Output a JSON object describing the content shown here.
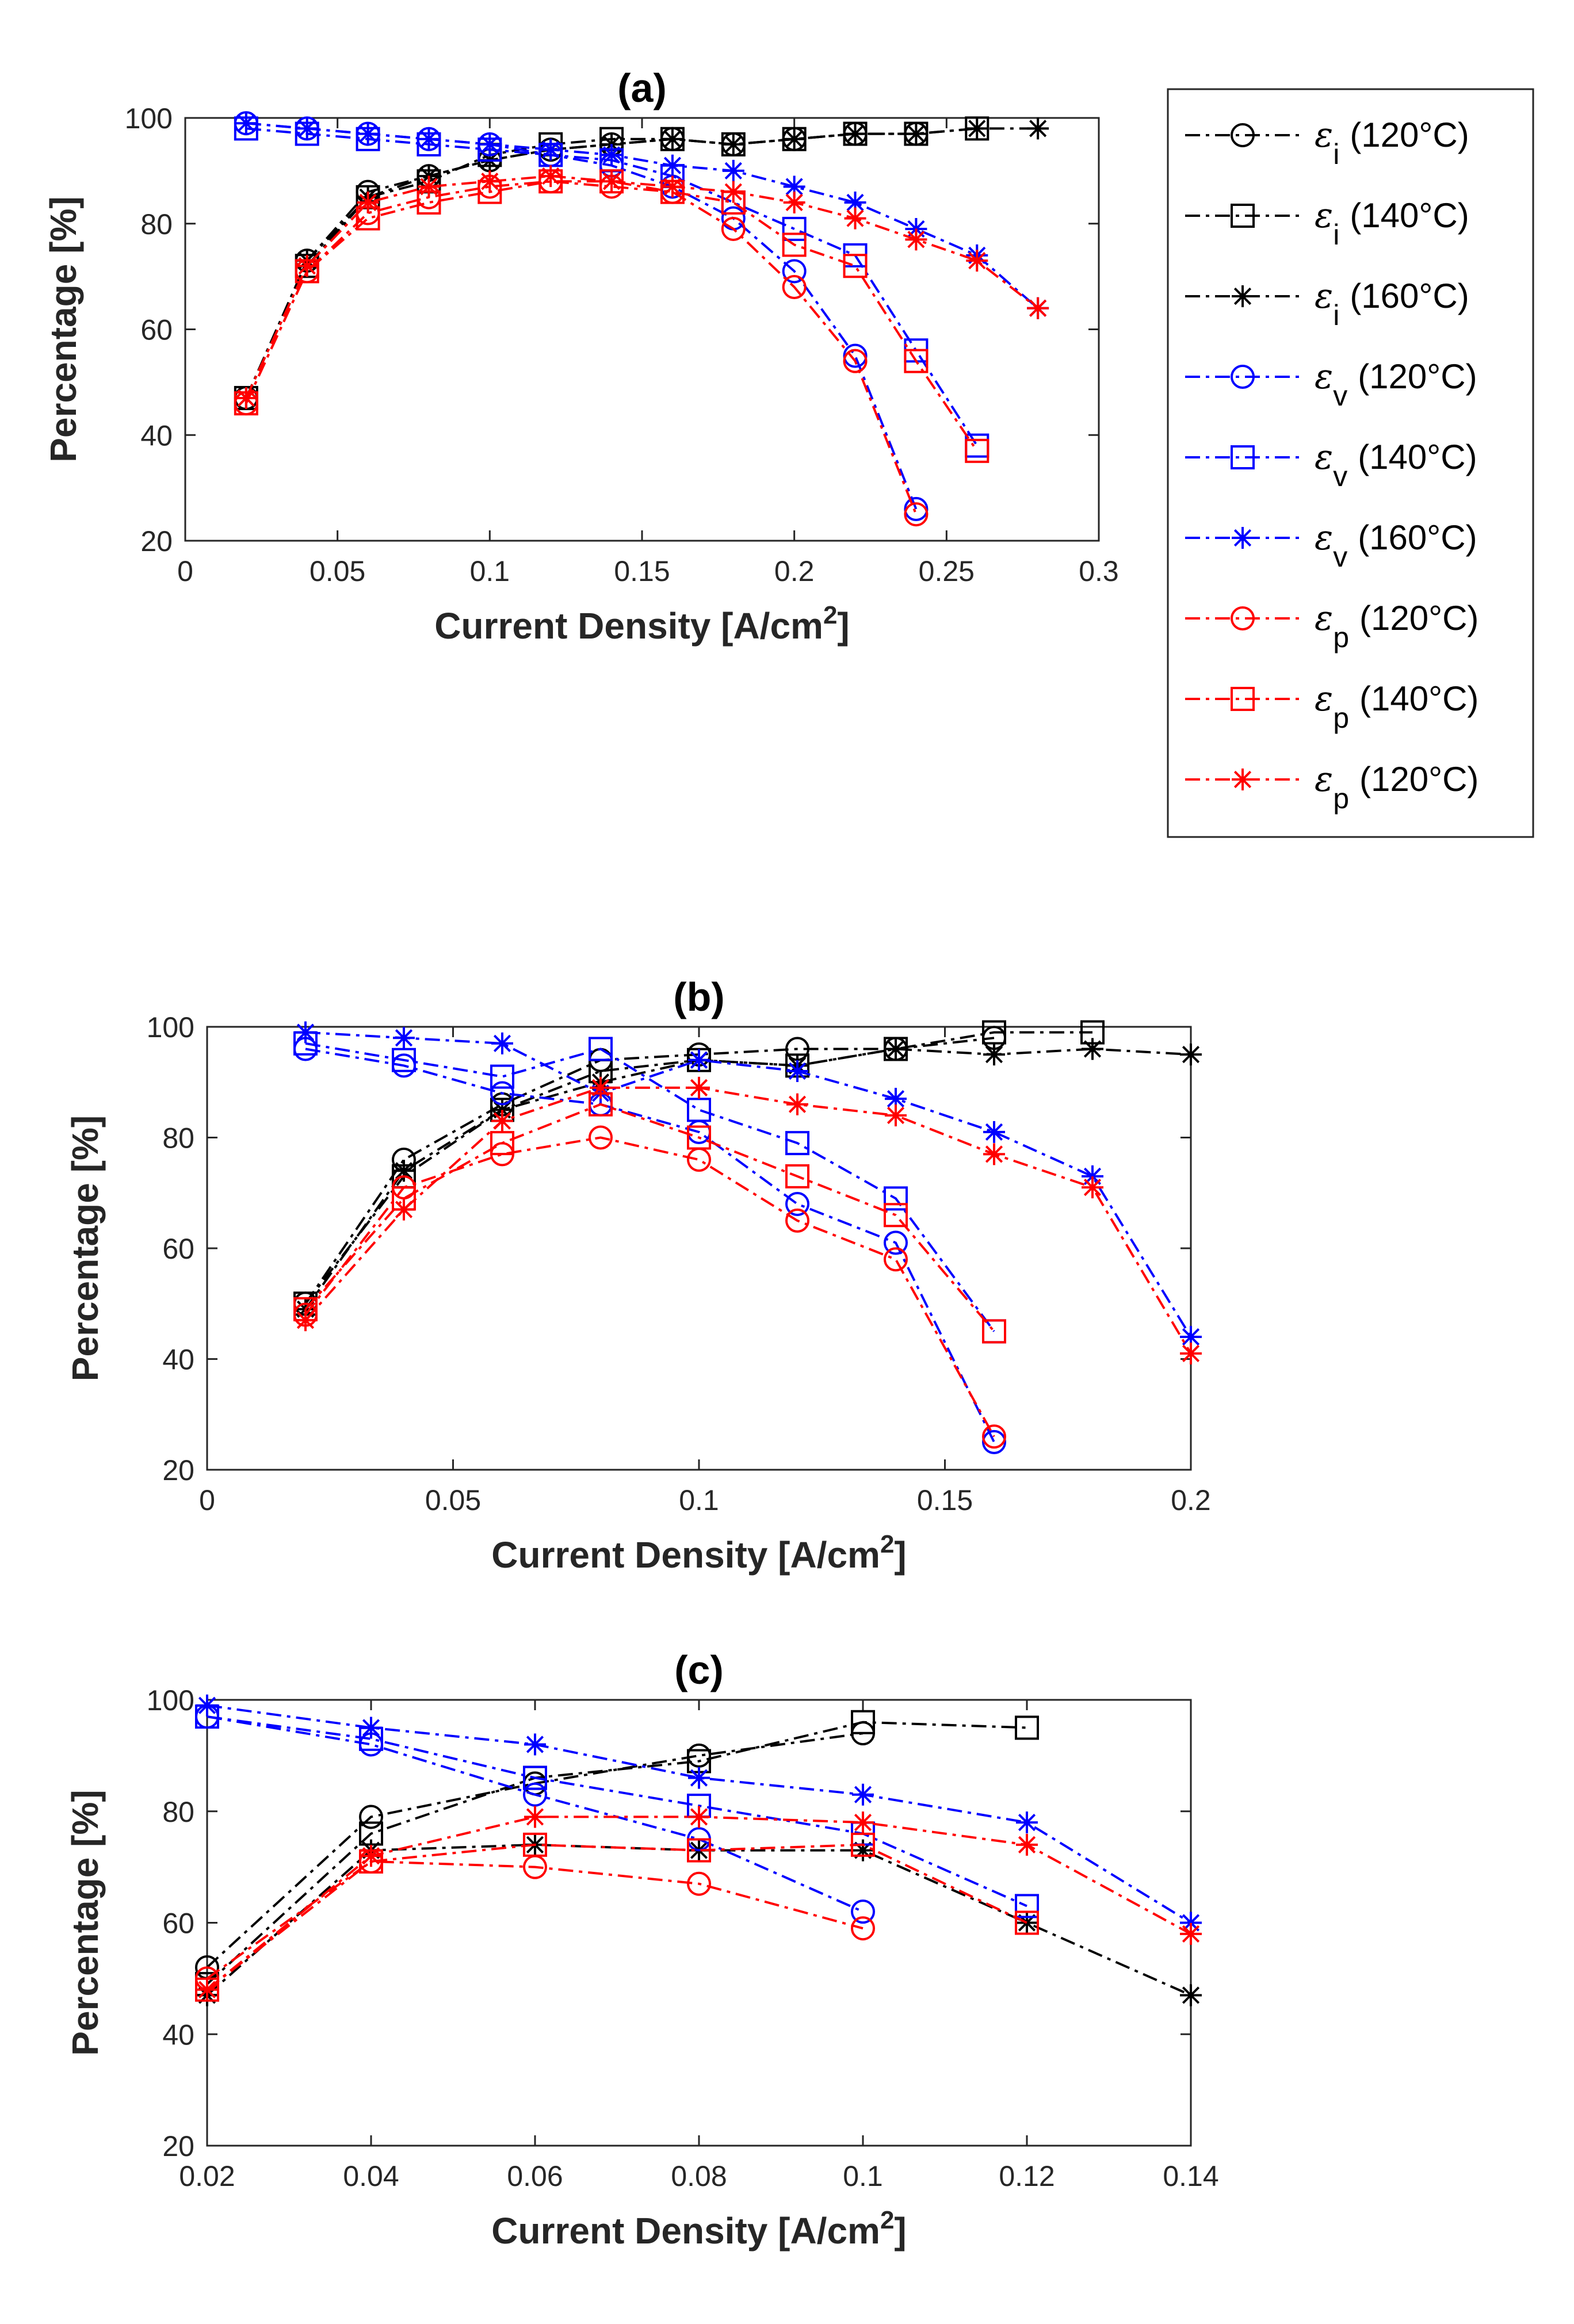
{
  "legend": {
    "entries": [
      {
        "symbol": "ε",
        "sub": "i",
        "temp": "(120°C)",
        "color": "#000000",
        "marker": "circle"
      },
      {
        "symbol": "ε",
        "sub": "i",
        "temp": "(140°C)",
        "color": "#000000",
        "marker": "square"
      },
      {
        "symbol": "ε",
        "sub": "i",
        "temp": "(160°C)",
        "color": "#000000",
        "marker": "star"
      },
      {
        "symbol": "ε",
        "sub": "v",
        "temp": "(120°C)",
        "color": "#0000FF",
        "marker": "circle"
      },
      {
        "symbol": "ε",
        "sub": "v",
        "temp": "(140°C)",
        "color": "#0000FF",
        "marker": "square"
      },
      {
        "symbol": "ε",
        "sub": "v",
        "temp": "(160°C)",
        "color": "#0000FF",
        "marker": "star"
      },
      {
        "symbol": "ε",
        "sub": "p",
        "temp": "(120°C)",
        "color": "#FF0000",
        "marker": "circle"
      },
      {
        "symbol": "ε",
        "sub": "p",
        "temp": "(140°C)",
        "color": "#FF0000",
        "marker": "square"
      },
      {
        "symbol": "ε",
        "sub": "p",
        "temp": "(120°C)",
        "color": "#FF0000",
        "marker": "star"
      }
    ]
  },
  "chart_data": [
    {
      "id": "a",
      "type": "line",
      "title": "(a)",
      "xlabel": "Current Density [A/cm",
      "xlabel_sup": "2",
      "xlabel_end": "]",
      "ylabel": "Percentage [%]",
      "xlim": [
        0,
        0.3
      ],
      "ylim": [
        20,
        100
      ],
      "xticks": [
        0,
        0.05,
        0.1,
        0.15,
        0.2,
        0.25,
        0.3
      ],
      "xtick_labels": [
        "0",
        "0.05",
        "0.1",
        "0.15",
        "0.2",
        "0.25",
        "0.3"
      ],
      "yticks": [
        20,
        40,
        60,
        80,
        100
      ],
      "ytick_labels": [
        "20",
        "40",
        "60",
        "80",
        "100"
      ],
      "series": [
        {
          "name": "εi (120°C)",
          "color": "#000000",
          "marker": "circle",
          "x": [
            0.02,
            0.04,
            0.06,
            0.08,
            0.1,
            0.12,
            0.14,
            0.16,
            0.18,
            0.2,
            0.22,
            0.24
          ],
          "y": [
            47,
            73,
            86,
            89,
            92,
            94,
            95,
            96,
            95,
            96,
            97,
            97
          ]
        },
        {
          "name": "εi (140°C)",
          "color": "#000000",
          "marker": "square",
          "x": [
            0.02,
            0.04,
            0.06,
            0.08,
            0.1,
            0.12,
            0.14,
            0.16,
            0.18,
            0.2,
            0.22,
            0.24,
            0.26
          ],
          "y": [
            47,
            72,
            85,
            88,
            93,
            95,
            96,
            96,
            95,
            96,
            97,
            97,
            98
          ]
        },
        {
          "name": "εi (160°C)",
          "color": "#000000",
          "marker": "star",
          "x": [
            0.02,
            0.04,
            0.06,
            0.08,
            0.1,
            0.12,
            0.14,
            0.16,
            0.18,
            0.2,
            0.22,
            0.24,
            0.26,
            0.28
          ],
          "y": [
            47,
            73,
            85,
            89,
            92,
            94,
            95,
            96,
            95,
            96,
            97,
            97,
            98,
            98
          ]
        },
        {
          "name": "εv (120°C)",
          "color": "#0000FF",
          "marker": "circle",
          "x": [
            0.02,
            0.04,
            0.06,
            0.08,
            0.1,
            0.12,
            0.14,
            0.16,
            0.18,
            0.2,
            0.22,
            0.24
          ],
          "y": [
            99,
            98,
            97,
            96,
            95,
            93,
            91,
            87,
            81,
            71,
            55,
            26
          ]
        },
        {
          "name": "εv (140°C)",
          "color": "#0000FF",
          "marker": "square",
          "x": [
            0.02,
            0.04,
            0.06,
            0.08,
            0.1,
            0.12,
            0.14,
            0.16,
            0.18,
            0.2,
            0.22,
            0.24,
            0.26
          ],
          "y": [
            98,
            97,
            96,
            95,
            94,
            93,
            92,
            89,
            84,
            79,
            74,
            56,
            38
          ]
        },
        {
          "name": "εv (160°C)",
          "color": "#0000FF",
          "marker": "star",
          "x": [
            0.02,
            0.04,
            0.06,
            0.08,
            0.1,
            0.12,
            0.14,
            0.16,
            0.18,
            0.2,
            0.22,
            0.24,
            0.26,
            0.28
          ],
          "y": [
            99,
            98,
            97,
            96,
            95,
            94,
            93,
            91,
            90,
            87,
            84,
            79,
            74,
            64
          ]
        },
        {
          "name": "εp (120°C)",
          "color": "#FF0000",
          "marker": "circle",
          "x": [
            0.02,
            0.04,
            0.06,
            0.08,
            0.1,
            0.12,
            0.14,
            0.16,
            0.18,
            0.2,
            0.22,
            0.24
          ],
          "y": [
            46,
            71,
            82,
            85,
            87,
            88,
            87,
            86,
            79,
            68,
            54,
            25
          ]
        },
        {
          "name": "εp (140°C)",
          "color": "#FF0000",
          "marker": "square",
          "x": [
            0.02,
            0.04,
            0.06,
            0.08,
            0.1,
            0.12,
            0.14,
            0.16,
            0.18,
            0.2,
            0.22,
            0.24,
            0.26
          ],
          "y": [
            46,
            71,
            81,
            84,
            86,
            88,
            88,
            86,
            84,
            76,
            72,
            54,
            37
          ]
        },
        {
          "name": "εp (120°C)",
          "color": "#FF0000",
          "marker": "star",
          "x": [
            0.02,
            0.04,
            0.06,
            0.08,
            0.1,
            0.12,
            0.14,
            0.16,
            0.18,
            0.2,
            0.22,
            0.24,
            0.26,
            0.28
          ],
          "y": [
            47,
            72,
            84,
            87,
            88,
            89,
            88,
            87,
            86,
            84,
            81,
            77,
            73,
            64
          ]
        }
      ]
    },
    {
      "id": "b",
      "type": "line",
      "title": "(b)",
      "xlabel": "Current Density [A/cm",
      "xlabel_sup": "2",
      "xlabel_end": "]",
      "ylabel": "Percentage [%]",
      "xlim": [
        0,
        0.2
      ],
      "ylim": [
        20,
        100
      ],
      "xticks": [
        0,
        0.05,
        0.1,
        0.15,
        0.2
      ],
      "xtick_labels": [
        "0",
        "0.05",
        "0.1",
        "0.15",
        "0.2"
      ],
      "yticks": [
        20,
        40,
        60,
        80,
        100
      ],
      "ytick_labels": [
        "20",
        "40",
        "60",
        "80",
        "100"
      ],
      "series": [
        {
          "name": "εi (120°C)",
          "color": "#000000",
          "marker": "circle",
          "x": [
            0.02,
            0.04,
            0.06,
            0.08,
            0.1,
            0.12,
            0.14,
            0.16
          ],
          "y": [
            50,
            76,
            86,
            94,
            95,
            96,
            96,
            98
          ]
        },
        {
          "name": "εi (140°C)",
          "color": "#000000",
          "marker": "square",
          "x": [
            0.02,
            0.04,
            0.06,
            0.08,
            0.1,
            0.12,
            0.14,
            0.16,
            0.18
          ],
          "y": [
            50,
            73,
            85,
            92,
            94,
            93,
            96,
            99,
            99
          ]
        },
        {
          "name": "εi (160°C)",
          "color": "#000000",
          "marker": "star",
          "x": [
            0.02,
            0.04,
            0.06,
            0.08,
            0.1,
            0.12,
            0.14,
            0.16,
            0.18,
            0.2
          ],
          "y": [
            49,
            74,
            85,
            90,
            94,
            93,
            96,
            95,
            96,
            95
          ]
        },
        {
          "name": "εv (120°C)",
          "color": "#0000FF",
          "marker": "circle",
          "x": [
            0.02,
            0.04,
            0.06,
            0.08,
            0.1,
            0.12,
            0.14,
            0.16
          ],
          "y": [
            96,
            93,
            88,
            86,
            81,
            68,
            61,
            25
          ]
        },
        {
          "name": "εv (140°C)",
          "color": "#0000FF",
          "marker": "square",
          "x": [
            0.02,
            0.04,
            0.06,
            0.08,
            0.1,
            0.12,
            0.14,
            0.16
          ],
          "y": [
            97,
            94,
            91,
            96,
            85,
            79,
            69,
            45
          ]
        },
        {
          "name": "εv (160°C)",
          "color": "#0000FF",
          "marker": "star",
          "x": [
            0.02,
            0.04,
            0.06,
            0.08,
            0.1,
            0.12,
            0.14,
            0.16,
            0.18,
            0.2
          ],
          "y": [
            99,
            98,
            97,
            88,
            94,
            92,
            87,
            81,
            73,
            44
          ]
        },
        {
          "name": "εp (120°C)",
          "color": "#FF0000",
          "marker": "circle",
          "x": [
            0.02,
            0.04,
            0.06,
            0.08,
            0.1,
            0.12,
            0.14,
            0.16
          ],
          "y": [
            48,
            71,
            77,
            80,
            76,
            65,
            58,
            26
          ]
        },
        {
          "name": "εp (140°C)",
          "color": "#FF0000",
          "marker": "square",
          "x": [
            0.02,
            0.04,
            0.06,
            0.08,
            0.1,
            0.12,
            0.14,
            0.16
          ],
          "y": [
            49,
            69,
            79,
            86,
            80,
            73,
            66,
            45
          ]
        },
        {
          "name": "εp (120°C)",
          "color": "#FF0000",
          "marker": "star",
          "x": [
            0.02,
            0.04,
            0.06,
            0.08,
            0.1,
            0.12,
            0.14,
            0.16,
            0.18,
            0.2
          ],
          "y": [
            47,
            67,
            83,
            89,
            89,
            86,
            84,
            77,
            71,
            41
          ]
        }
      ]
    },
    {
      "id": "c",
      "type": "line",
      "title": "(c)",
      "xlabel": "Current Density [A/cm",
      "xlabel_sup": "2",
      "xlabel_end": "]",
      "ylabel": "Percentage [%]",
      "xlim": [
        0.02,
        0.14
      ],
      "ylim": [
        20,
        100
      ],
      "xticks": [
        0.02,
        0.04,
        0.06,
        0.08,
        0.1,
        0.12,
        0.14
      ],
      "xtick_labels": [
        "0.02",
        "0.04",
        "0.06",
        "0.08",
        "0.1",
        "0.12",
        "0.14"
      ],
      "yticks": [
        20,
        40,
        60,
        80,
        100
      ],
      "ytick_labels": [
        "20",
        "40",
        "60",
        "80",
        "100"
      ],
      "series": [
        {
          "name": "εi (120°C)",
          "color": "#000000",
          "marker": "circle",
          "x": [
            0.02,
            0.04,
            0.06,
            0.08,
            0.1
          ],
          "y": [
            52,
            79,
            85,
            90,
            94
          ]
        },
        {
          "name": "εi (140°C)",
          "color": "#000000",
          "marker": "square",
          "x": [
            0.02,
            0.04,
            0.06,
            0.08,
            0.1,
            0.12
          ],
          "y": [
            49,
            76,
            86,
            89,
            96,
            95
          ]
        },
        {
          "name": "εi (160°C)",
          "color": "#000000",
          "marker": "star",
          "x": [
            0.02,
            0.04,
            0.06,
            0.08,
            0.1,
            0.12,
            0.14
          ],
          "y": [
            47,
            73,
            74,
            73,
            73,
            60,
            47
          ]
        },
        {
          "name": "εv (120°C)",
          "color": "#0000FF",
          "marker": "circle",
          "x": [
            0.02,
            0.04,
            0.06,
            0.08,
            0.1
          ],
          "y": [
            97,
            92,
            83,
            75,
            62
          ]
        },
        {
          "name": "εv (140°C)",
          "color": "#0000FF",
          "marker": "square",
          "x": [
            0.02,
            0.04,
            0.06,
            0.08,
            0.1,
            0.12
          ],
          "y": [
            97,
            93,
            86,
            81,
            76,
            63
          ]
        },
        {
          "name": "εv (160°C)",
          "color": "#0000FF",
          "marker": "star",
          "x": [
            0.02,
            0.04,
            0.06,
            0.08,
            0.1,
            0.12,
            0.14
          ],
          "y": [
            99,
            95,
            92,
            86,
            83,
            78,
            60
          ]
        },
        {
          "name": "εp (120°C)",
          "color": "#FF0000",
          "marker": "circle",
          "x": [
            0.02,
            0.04,
            0.06,
            0.08,
            0.1
          ],
          "y": [
            50,
            71,
            70,
            67,
            59
          ]
        },
        {
          "name": "εp (140°C)",
          "color": "#FF0000",
          "marker": "square",
          "x": [
            0.02,
            0.04,
            0.06,
            0.08,
            0.1,
            0.12
          ],
          "y": [
            48,
            71,
            74,
            73,
            74,
            60
          ]
        },
        {
          "name": "εp (120°C)",
          "color": "#FF0000",
          "marker": "star",
          "x": [
            0.02,
            0.04,
            0.06,
            0.08,
            0.1,
            0.12,
            0.14
          ],
          "y": [
            48,
            72,
            79,
            79,
            78,
            74,
            58
          ]
        }
      ]
    }
  ]
}
